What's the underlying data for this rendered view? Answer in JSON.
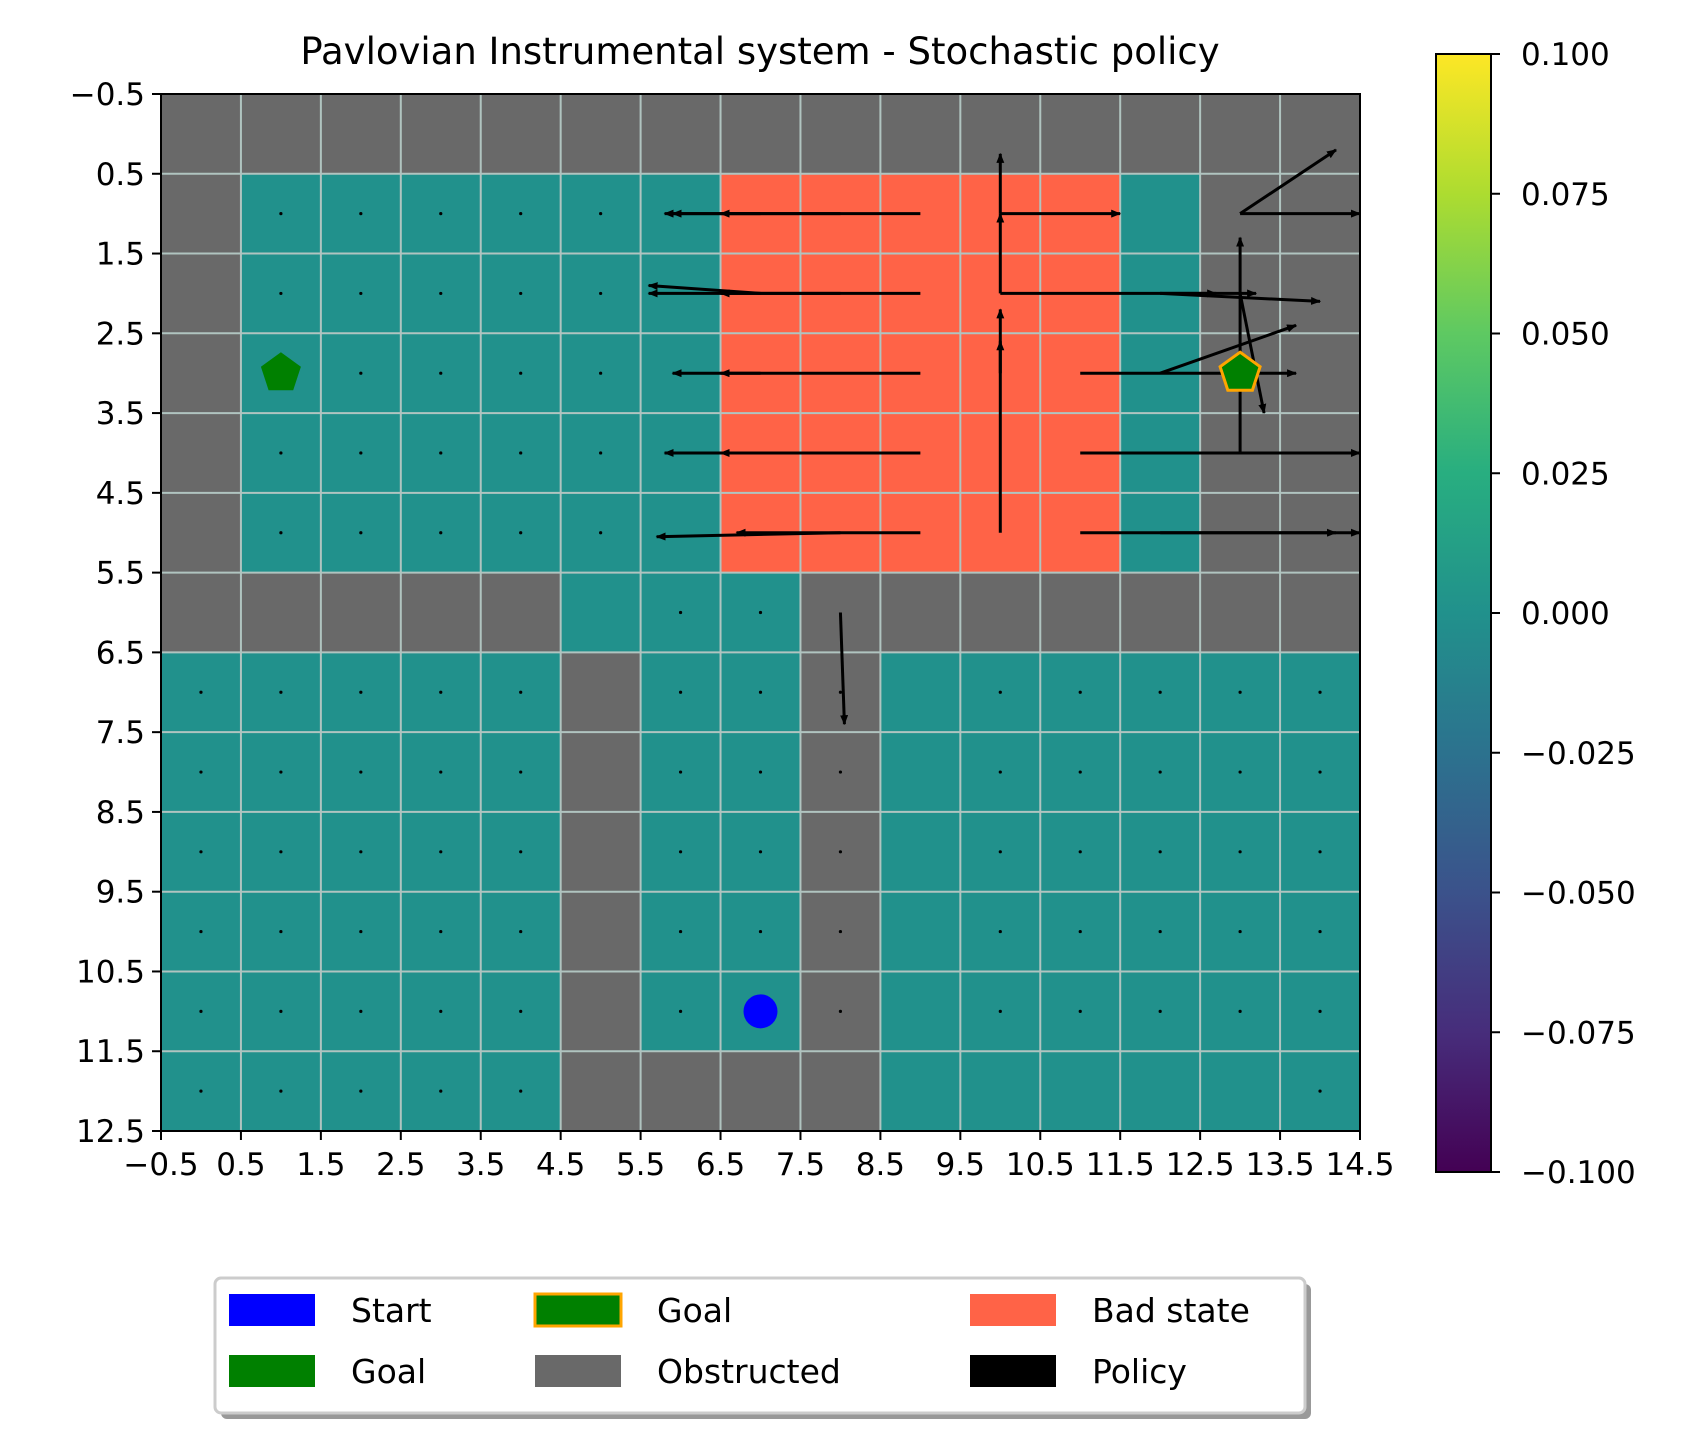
{
  "chart_data": {
    "type": "heatmap",
    "title": "Pavlovian Instrumental system - Stochastic policy",
    "xlabel": "",
    "ylabel": "",
    "xlim": [
      -0.5,
      14.5
    ],
    "ylim": [
      12.5,
      -0.5
    ],
    "x_ticks": [
      "−0.5",
      "0.5",
      "1.5",
      "2.5",
      "3.5",
      "4.5",
      "5.5",
      "6.5",
      "7.5",
      "8.5",
      "9.5",
      "10.5",
      "11.5",
      "12.5",
      "13.5",
      "14.5"
    ],
    "y_ticks": [
      "−0.5",
      "0.5",
      "1.5",
      "2.5",
      "3.5",
      "4.5",
      "5.5",
      "6.5",
      "7.5",
      "8.5",
      "9.5",
      "10.5",
      "11.5",
      "12.5"
    ],
    "grid": true,
    "colorbar": {
      "colormap": "viridis",
      "range": [
        -0.1,
        0.1
      ],
      "ticks": [
        "0.100",
        "0.075",
        "0.050",
        "0.025",
        "0.000",
        "−0.025",
        "−0.050",
        "−0.075",
        "−0.100"
      ]
    },
    "value_color": "#21918c",
    "grid_layout": [
      "OOOOOOOOOOOOOOO",
      "O......BBBBB.OO",
      "O......BBBBB.OO",
      "O......BBBBB.OO",
      "O......BBBBB.OO",
      "O......BBBBB.OO",
      "OOOOO...OOOOOOO",
      ".....O..O......",
      ".....O..O......",
      ".....O..O......",
      ".....O..O......",
      ".....O..O......",
      ".....OOOO......"
    ],
    "cell_colors": {
      "value": "#21918c",
      "obstructed": "#696969",
      "bad_state": "#ff6347"
    },
    "start": {
      "x": 7,
      "y": 11,
      "color": "#0000ff"
    },
    "goals": [
      {
        "x": 1,
        "y": 3,
        "fill": "#008000",
        "edge": "none"
      },
      {
        "x": 13,
        "y": 3,
        "fill": "#008000",
        "edge": "#ffa500"
      }
    ],
    "policy_dots": [
      [
        1,
        1
      ],
      [
        2,
        1
      ],
      [
        3,
        1
      ],
      [
        4,
        1
      ],
      [
        5,
        1
      ],
      [
        1,
        2
      ],
      [
        2,
        2
      ],
      [
        3,
        2
      ],
      [
        4,
        2
      ],
      [
        5,
        2
      ],
      [
        2,
        3
      ],
      [
        3,
        3
      ],
      [
        4,
        3
      ],
      [
        5,
        3
      ],
      [
        1,
        4
      ],
      [
        2,
        4
      ],
      [
        3,
        4
      ],
      [
        4,
        4
      ],
      [
        5,
        4
      ],
      [
        1,
        5
      ],
      [
        2,
        5
      ],
      [
        3,
        5
      ],
      [
        4,
        5
      ],
      [
        5,
        5
      ],
      [
        6,
        6
      ],
      [
        7,
        6
      ],
      [
        0,
        7
      ],
      [
        1,
        7
      ],
      [
        2,
        7
      ],
      [
        3,
        7
      ],
      [
        4,
        7
      ],
      [
        6,
        7
      ],
      [
        7,
        7
      ],
      [
        8,
        7
      ],
      [
        10,
        7
      ],
      [
        11,
        7
      ],
      [
        12,
        7
      ],
      [
        13,
        7
      ],
      [
        14,
        7
      ],
      [
        0,
        8
      ],
      [
        1,
        8
      ],
      [
        2,
        8
      ],
      [
        3,
        8
      ],
      [
        4,
        8
      ],
      [
        6,
        8
      ],
      [
        7,
        8
      ],
      [
        8,
        8
      ],
      [
        10,
        8
      ],
      [
        11,
        8
      ],
      [
        12,
        8
      ],
      [
        13,
        8
      ],
      [
        14,
        8
      ],
      [
        0,
        9
      ],
      [
        1,
        9
      ],
      [
        2,
        9
      ],
      [
        3,
        9
      ],
      [
        4,
        9
      ],
      [
        6,
        9
      ],
      [
        7,
        9
      ],
      [
        8,
        9
      ],
      [
        10,
        9
      ],
      [
        11,
        9
      ],
      [
        12,
        9
      ],
      [
        13,
        9
      ],
      [
        14,
        9
      ],
      [
        0,
        10
      ],
      [
        1,
        10
      ],
      [
        2,
        10
      ],
      [
        3,
        10
      ],
      [
        4,
        10
      ],
      [
        6,
        10
      ],
      [
        7,
        10
      ],
      [
        8,
        10
      ],
      [
        10,
        10
      ],
      [
        11,
        10
      ],
      [
        12,
        10
      ],
      [
        13,
        10
      ],
      [
        14,
        10
      ],
      [
        0,
        11
      ],
      [
        1,
        11
      ],
      [
        2,
        11
      ],
      [
        3,
        11
      ],
      [
        4,
        11
      ],
      [
        6,
        11
      ],
      [
        7,
        11
      ],
      [
        8,
        11
      ],
      [
        10,
        11
      ],
      [
        11,
        11
      ],
      [
        12,
        11
      ],
      [
        13,
        11
      ],
      [
        14,
        11
      ],
      [
        0,
        12
      ],
      [
        1,
        12
      ],
      [
        2,
        12
      ],
      [
        3,
        12
      ],
      [
        4,
        12
      ],
      [
        14,
        12
      ]
    ],
    "policy_arrows": [
      {
        "x": 7,
        "y": 1,
        "dx": -1.1,
        "dy": 0
      },
      {
        "x": 8,
        "y": 1,
        "dx": -2.2,
        "dy": 0
      },
      {
        "x": 9,
        "y": 1,
        "dx": -2.5,
        "dy": 0
      },
      {
        "x": 10,
        "y": 1,
        "dx": 0,
        "dy": -0.75
      },
      {
        "x": 10,
        "y": 1,
        "dx": 1.5,
        "dy": 0
      },
      {
        "x": 13,
        "y": 1,
        "dx": 1.5,
        "dy": 0
      },
      {
        "x": 13,
        "y": 1,
        "dx": 1.2,
        "dy": -0.8
      },
      {
        "x": 7,
        "y": 2,
        "dx": -1.4,
        "dy": -0.1
      },
      {
        "x": 8,
        "y": 2,
        "dx": -2.4,
        "dy": 0
      },
      {
        "x": 9,
        "y": 2,
        "dx": -2.5,
        "dy": 0
      },
      {
        "x": 10,
        "y": 2,
        "dx": 0,
        "dy": -1.0
      },
      {
        "x": 10,
        "y": 2,
        "dx": 2.7,
        "dy": 0
      },
      {
        "x": 12,
        "y": 2,
        "dx": 1.2,
        "dy": 0
      },
      {
        "x": 12,
        "y": 2,
        "dx": 2.0,
        "dy": 0.1
      },
      {
        "x": 7,
        "y": 3,
        "dx": -1.1,
        "dy": 0
      },
      {
        "x": 9,
        "y": 3,
        "dx": -2.5,
        "dy": 0
      },
      {
        "x": 10,
        "y": 3,
        "dx": 0,
        "dy": -0.8
      },
      {
        "x": 11,
        "y": 3,
        "dx": 2.7,
        "dy": 0
      },
      {
        "x": 12,
        "y": 3,
        "dx": 1.7,
        "dy": -0.6
      },
      {
        "x": 13,
        "y": 2,
        "dx": 0.3,
        "dy": 1.5
      },
      {
        "x": 13,
        "y": 4,
        "dx": 0,
        "dy": -2.7
      },
      {
        "x": 7,
        "y": 4,
        "dx": -1.2,
        "dy": 0
      },
      {
        "x": 9,
        "y": 4,
        "dx": -2.5,
        "dy": 0
      },
      {
        "x": 11,
        "y": 4,
        "dx": 3.5,
        "dy": 0
      },
      {
        "x": 8,
        "y": 5,
        "dx": -2.3,
        "dy": 0.05
      },
      {
        "x": 9,
        "y": 5,
        "dx": -2.3,
        "dy": 0
      },
      {
        "x": 10,
        "y": 5,
        "dx": 0,
        "dy": -2.4
      },
      {
        "x": 11,
        "y": 5,
        "dx": 3.5,
        "dy": 0
      },
      {
        "x": 12,
        "y": 5,
        "dx": 2.2,
        "dy": 0
      },
      {
        "x": 8,
        "y": 6,
        "dx": 0.05,
        "dy": 1.4
      }
    ],
    "legend": {
      "placement": "bottom-center",
      "entries": [
        {
          "label": "Start",
          "fill": "#0000ff",
          "edge": "none"
        },
        {
          "label": "Goal",
          "fill": "#008000",
          "edge": "none"
        },
        {
          "label": "Goal",
          "fill": "#008000",
          "edge": "#ffa500"
        },
        {
          "label": "Obstructed",
          "fill": "#696969",
          "edge": "none"
        },
        {
          "label": "Bad state",
          "fill": "#ff6347",
          "edge": "none"
        },
        {
          "label": "Policy",
          "fill": "#000000",
          "edge": "none"
        }
      ]
    }
  }
}
